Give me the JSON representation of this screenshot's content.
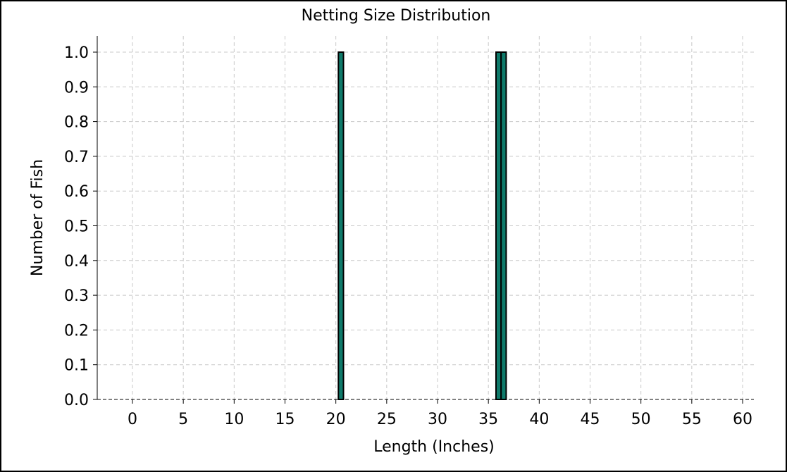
{
  "chart_data": {
    "type": "bar",
    "title": "Netting Size Distribution",
    "xlabel": "Length (Inches)",
    "ylabel": "Number of Fish",
    "x_ticks": [
      "0",
      "5",
      "10",
      "15",
      "20",
      "25",
      "30",
      "35",
      "40",
      "45",
      "50",
      "55",
      "60"
    ],
    "y_ticks": [
      "0.0",
      "0.1",
      "0.2",
      "0.3",
      "0.4",
      "0.5",
      "0.6",
      "0.7",
      "0.8",
      "0.9",
      "1.0"
    ],
    "xlim": [
      -1.7,
      63.2
    ],
    "ylim": [
      0,
      1.05
    ],
    "bar_width": 0.5,
    "bars": [
      {
        "x": 20.5,
        "value": 1
      },
      {
        "x": 36,
        "value": 1
      },
      {
        "x": 36.5,
        "value": 1
      }
    ],
    "grid": true,
    "bar_color": "#0f7a6a"
  }
}
